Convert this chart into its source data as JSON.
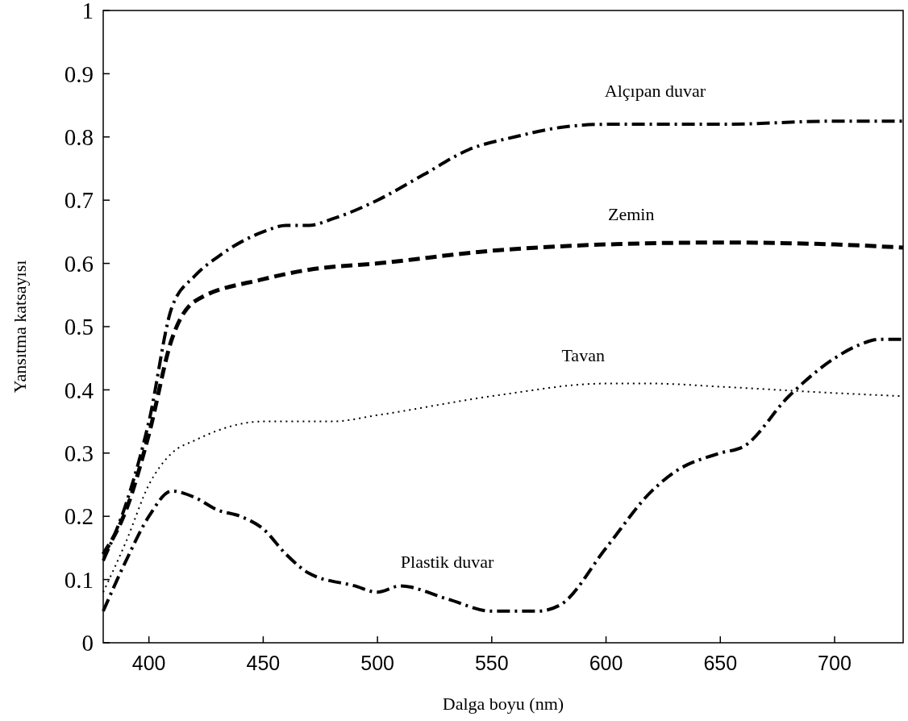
{
  "chart_data": {
    "type": "line",
    "xlabel": "Dalga boyu (nm)",
    "ylabel": "Yansıtma katsayısı",
    "xlim": [
      380,
      730
    ],
    "xticks": [
      400,
      450,
      500,
      550,
      600,
      650,
      700
    ],
    "ylim": [
      0,
      1
    ],
    "yticks": [
      0,
      0.1,
      0.2,
      0.3,
      0.4,
      0.5,
      0.6,
      0.7,
      0.8,
      0.9,
      1
    ],
    "grid": false,
    "series": [
      {
        "name": "Alçıpan duvar",
        "color": "#000000",
        "line_style": "dashdot",
        "x": [
          380,
          390,
          400,
          410,
          420,
          430,
          450,
          460,
          470,
          480,
          500,
          520,
          540,
          560,
          580,
          600,
          620,
          650,
          700,
          730
        ],
        "values": [
          0.13,
          0.22,
          0.35,
          0.53,
          0.58,
          0.61,
          0.65,
          0.66,
          0.66,
          0.67,
          0.7,
          0.74,
          0.78,
          0.8,
          0.815,
          0.82,
          0.82,
          0.82,
          0.825,
          0.825
        ]
      },
      {
        "name": "Zemin",
        "color": "#000000",
        "line_style": "dashed",
        "x": [
          380,
          390,
          400,
          410,
          420,
          450,
          470,
          500,
          550,
          600,
          650,
          700,
          730
        ],
        "values": [
          0.14,
          0.21,
          0.33,
          0.48,
          0.54,
          0.575,
          0.59,
          0.6,
          0.62,
          0.63,
          0.633,
          0.63,
          0.625
        ]
      },
      {
        "name": "Tavan",
        "color": "#000000",
        "line_style": "dotted",
        "x": [
          380,
          390,
          400,
          410,
          420,
          450,
          480,
          500,
          550,
          600,
          620,
          650,
          700,
          730
        ],
        "values": [
          0.08,
          0.16,
          0.25,
          0.3,
          0.32,
          0.35,
          0.35,
          0.36,
          0.39,
          0.41,
          0.41,
          0.405,
          0.395,
          0.39
        ]
      },
      {
        "name": "Plastik duvar",
        "color": "#000000",
        "line_style": "dashdot",
        "x": [
          380,
          390,
          400,
          410,
          420,
          430,
          440,
          450,
          460,
          470,
          490,
          500,
          510,
          530,
          550,
          570,
          580,
          600,
          620,
          630,
          650,
          660,
          680,
          700,
          710,
          720,
          730
        ],
        "values": [
          0.05,
          0.13,
          0.2,
          0.24,
          0.23,
          0.21,
          0.2,
          0.18,
          0.14,
          0.11,
          0.09,
          0.08,
          0.09,
          0.07,
          0.05,
          0.05,
          0.06,
          0.15,
          0.24,
          0.27,
          0.3,
          0.31,
          0.39,
          0.45,
          0.47,
          0.48,
          0.48
        ]
      }
    ]
  }
}
